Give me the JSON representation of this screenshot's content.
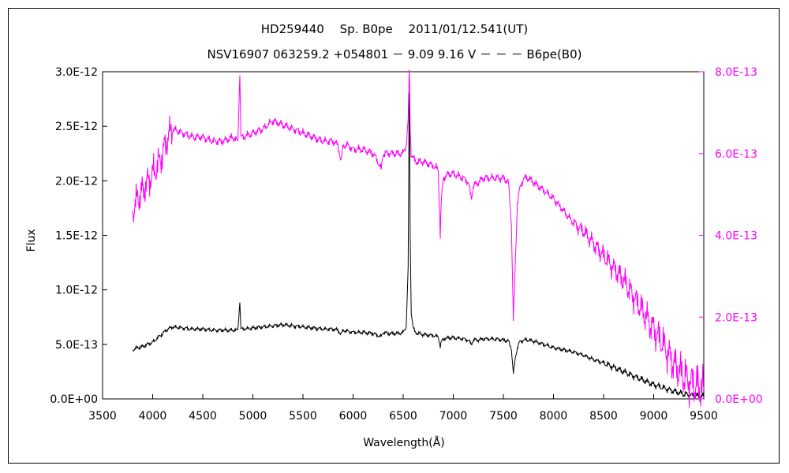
{
  "chart_data": {
    "type": "line",
    "title_line1": "HD259440　 Sp. B0pe　 2011/01/12.541(UT)",
    "title_line2": "NSV16907 063259.2 +054801 － 9.09 9.16 V － － － B6pe(B0)",
    "xlabel": "Wavelength(Å)",
    "ylabel": "Flux",
    "xlim": [
      3500,
      9500
    ],
    "ylim_left": [
      0,
      3e-12
    ],
    "ylim_right": [
      0,
      8e-13
    ],
    "x_ticks": [
      "3500",
      "4000",
      "4500",
      "5000",
      "5500",
      "6000",
      "6500",
      "7000",
      "7500",
      "8000",
      "8500",
      "9000",
      "9500"
    ],
    "y_left_ticks": [
      "0.0E+00",
      "5.0E-13",
      "1.0E-12",
      "1.5E-12",
      "2.0E-12",
      "2.5E-12",
      "3.0E-12"
    ],
    "y_right_ticks": [
      "0.0E+00",
      "2.0E-13",
      "4.0E-13",
      "6.0E-13",
      "8.0E-13"
    ],
    "grid": false,
    "legend": "none",
    "series": [
      {
        "axis": "left",
        "color": "#000000",
        "x": [
          3800,
          3850,
          3900,
          3950,
          4000,
          4050,
          4100,
          4150,
          4200,
          4300,
          4400,
          4500,
          4600,
          4700,
          4800,
          4850,
          4870,
          4880,
          4900,
          5000,
          5100,
          5200,
          5300,
          5400,
          5500,
          5600,
          5700,
          5800,
          5850,
          5880,
          5900,
          5950,
          6000,
          6100,
          6200,
          6250,
          6280,
          6300,
          6350,
          6400,
          6450,
          6500,
          6530,
          6550,
          6560,
          6565,
          6570,
          6580,
          6600,
          6620,
          6650,
          6700,
          6800,
          6850,
          6870,
          6880,
          6900,
          6950,
          7000,
          7100,
          7150,
          7180,
          7200,
          7250,
          7300,
          7400,
          7500,
          7550,
          7580,
          7600,
          7620,
          7640,
          7660,
          7700,
          7750,
          7800,
          7900,
          8000,
          8100,
          8200,
          8300,
          8400,
          8500,
          8600,
          8700,
          8800,
          8900,
          9000,
          9100,
          9200,
          9300,
          9400,
          9500
        ],
        "y": [
          4.5e-13,
          4.7e-13,
          4.8e-13,
          5e-13,
          5.2e-13,
          5.6e-13,
          6e-13,
          6.4e-13,
          6.6e-13,
          6.5e-13,
          6.4e-13,
          6.4e-13,
          6.3e-13,
          6.3e-13,
          6.3e-13,
          6.3e-13,
          9e-13,
          6.4e-13,
          6.4e-13,
          6.5e-13,
          6.6e-13,
          6.7e-13,
          6.8e-13,
          6.7e-13,
          6.6e-13,
          6.5e-13,
          6.4e-13,
          6.4e-13,
          6.3e-13,
          5.9e-13,
          6.3e-13,
          6.2e-13,
          6.1e-13,
          6.1e-13,
          6e-13,
          5.8e-13,
          5.7e-13,
          6.1e-13,
          6e-13,
          6e-13,
          6e-13,
          6.1e-13,
          6.6e-13,
          1.2e-12,
          2.8e-12,
          2.3e-12,
          1.5e-12,
          8e-13,
          6.5e-13,
          6.1e-13,
          6e-13,
          5.9e-13,
          5.8e-13,
          5.7e-13,
          4.8e-13,
          5.2e-13,
          5.5e-13,
          5.6e-13,
          5.6e-13,
          5.5e-13,
          5.4e-13,
          5e-13,
          5.4e-13,
          5.4e-13,
          5.5e-13,
          5.5e-13,
          5.4e-13,
          5.3e-13,
          4.6e-13,
          2.3e-13,
          3.8e-13,
          4.7e-13,
          5.2e-13,
          5.4e-13,
          5.4e-13,
          5.3e-13,
          5e-13,
          4.7e-13,
          4.5e-13,
          4.3e-13,
          4e-13,
          3.6e-13,
          3.3e-13,
          2.9e-13,
          2.5e-13,
          2.1e-13,
          1.7e-13,
          1.3e-13,
          1e-13,
          7e-14,
          4.5e-14,
          3e-14,
          2.5e-14
        ]
      },
      {
        "axis": "right",
        "color": "#ff00ff",
        "x": [
          3800,
          3850,
          3900,
          3950,
          4000,
          4050,
          4100,
          4150,
          4200,
          4300,
          4400,
          4500,
          4600,
          4700,
          4800,
          4850,
          4870,
          4880,
          4900,
          5000,
          5100,
          5200,
          5300,
          5400,
          5500,
          5600,
          5700,
          5800,
          5850,
          5880,
          5900,
          5950,
          6000,
          6100,
          6200,
          6250,
          6280,
          6300,
          6350,
          6400,
          6450,
          6500,
          6530,
          6550,
          6560,
          6565,
          6570,
          6580,
          6600,
          6620,
          6650,
          6700,
          6800,
          6850,
          6870,
          6880,
          6900,
          6950,
          7000,
          7100,
          7150,
          7180,
          7200,
          7250,
          7300,
          7400,
          7500,
          7550,
          7580,
          7600,
          7620,
          7640,
          7660,
          7700,
          7750,
          7800,
          7900,
          8000,
          8100,
          8200,
          8300,
          8400,
          8500,
          8600,
          8700,
          8800,
          8900,
          9000,
          9100,
          9200,
          9300,
          9400,
          9500
        ],
        "y": [
          4.6e-13,
          4.9e-13,
          5.1e-13,
          5.3e-13,
          5.5e-13,
          5.7e-13,
          6e-13,
          6.4e-13,
          6.6e-13,
          6.5e-13,
          6.4e-13,
          6.4e-13,
          6.3e-13,
          6.3e-13,
          6.4e-13,
          6.3e-13,
          8e-13,
          6.4e-13,
          6.4e-13,
          6.5e-13,
          6.6e-13,
          6.8e-13,
          6.7e-13,
          6.6e-13,
          6.5e-13,
          6.4e-13,
          6.3e-13,
          6.3e-13,
          6.2e-13,
          5.8e-13,
          6.2e-13,
          6.2e-13,
          6.1e-13,
          6.1e-13,
          6e-13,
          5.8e-13,
          5.6e-13,
          6e-13,
          6e-13,
          6e-13,
          6e-13,
          6e-13,
          6.2e-13,
          6.8e-13,
          8e-13,
          7.6e-13,
          6.6e-13,
          6e-13,
          5.9e-13,
          5.8e-13,
          5.8e-13,
          5.8e-13,
          5.7e-13,
          5.6e-13,
          4e-13,
          4.8e-13,
          5.4e-13,
          5.5e-13,
          5.5e-13,
          5.4e-13,
          5.3e-13,
          4.9e-13,
          5.2e-13,
          5.3e-13,
          5.4e-13,
          5.4e-13,
          5.4e-13,
          5.3e-13,
          4.3e-13,
          1.9e-13,
          3.4e-13,
          4.8e-13,
          5.1e-13,
          5.4e-13,
          5.4e-13,
          5.3e-13,
          5.1e-13,
          4.9e-13,
          4.6e-13,
          4.3e-13,
          4.1e-13,
          3.8e-13,
          3.5e-13,
          3.2e-13,
          2.9e-13,
          2.5e-13,
          2.1e-13,
          1.7e-13,
          1.3e-13,
          8.5e-14,
          5.5e-14,
          3.5e-14,
          2.5e-14
        ]
      }
    ]
  },
  "colors": {
    "left_axis": "#000000",
    "right_axis": "#ff00ff"
  }
}
